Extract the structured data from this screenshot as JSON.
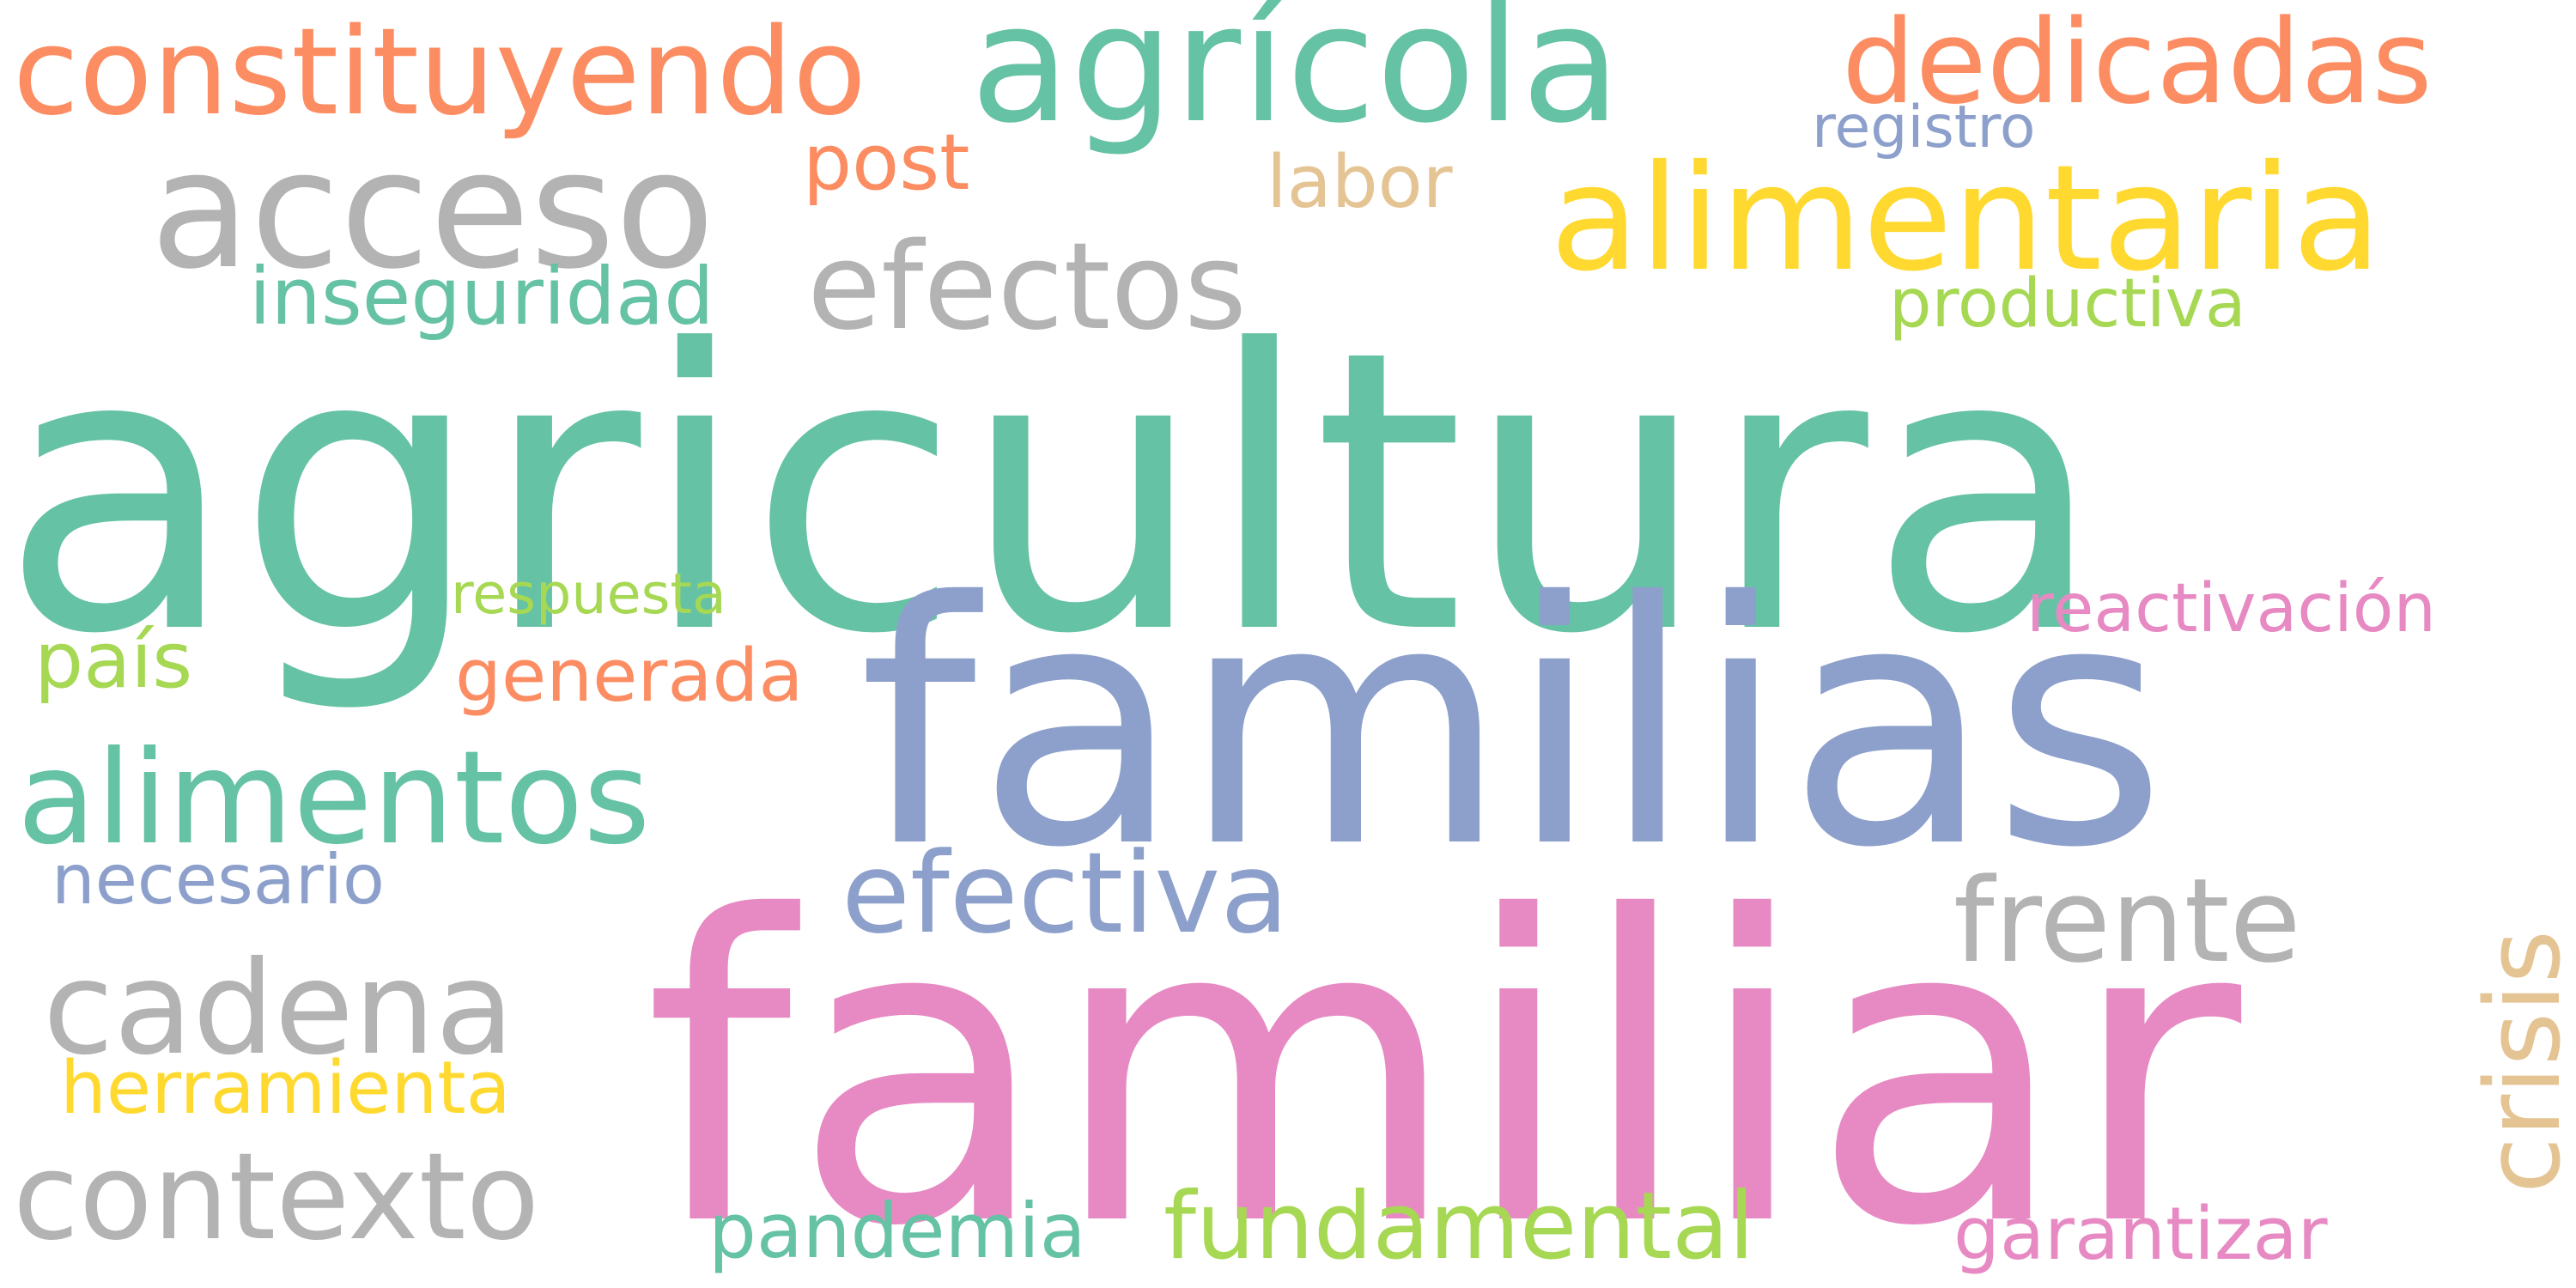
{
  "palette": {
    "teal": "#66C2A5",
    "salmon": "#FC8D62",
    "periwinkle": "#8DA0CB",
    "pink": "#E78AC3",
    "lime": "#A6D854",
    "yellow": "#FFD92F",
    "tan": "#E5C494",
    "gray": "#B3B3B3"
  },
  "words": [
    {
      "text": "agricultura",
      "color": "teal"
    },
    {
      "text": "familiar",
      "color": "pink"
    },
    {
      "text": "familias",
      "color": "periwinkle"
    },
    {
      "text": "agrícola",
      "color": "teal"
    },
    {
      "text": "alimentaria",
      "color": "yellow"
    },
    {
      "text": "acceso",
      "color": "gray"
    },
    {
      "text": "constituyendo",
      "color": "salmon"
    },
    {
      "text": "dedicadas",
      "color": "salmon"
    },
    {
      "text": "alimentos",
      "color": "teal"
    },
    {
      "text": "efectos",
      "color": "gray"
    },
    {
      "text": "cadena",
      "color": "gray"
    },
    {
      "text": "contexto",
      "color": "gray"
    },
    {
      "text": "efectiva",
      "color": "periwinkle"
    },
    {
      "text": "frente",
      "color": "gray"
    },
    {
      "text": "crisis",
      "color": "tan"
    },
    {
      "text": "fundamental",
      "color": "lime"
    },
    {
      "text": "inseguridad",
      "color": "teal"
    },
    {
      "text": "post",
      "color": "salmon"
    },
    {
      "text": "labor",
      "color": "tan"
    },
    {
      "text": "registro",
      "color": "periwinkle"
    },
    {
      "text": "productiva",
      "color": "lime"
    },
    {
      "text": "respuesta",
      "color": "lime"
    },
    {
      "text": "reactivación",
      "color": "pink"
    },
    {
      "text": "país",
      "color": "lime"
    },
    {
      "text": "generada",
      "color": "salmon"
    },
    {
      "text": "necesario",
      "color": "periwinkle"
    },
    {
      "text": "herramienta",
      "color": "yellow"
    },
    {
      "text": "pandemia",
      "color": "teal"
    },
    {
      "text": "garantizar",
      "color": "pink"
    }
  ]
}
